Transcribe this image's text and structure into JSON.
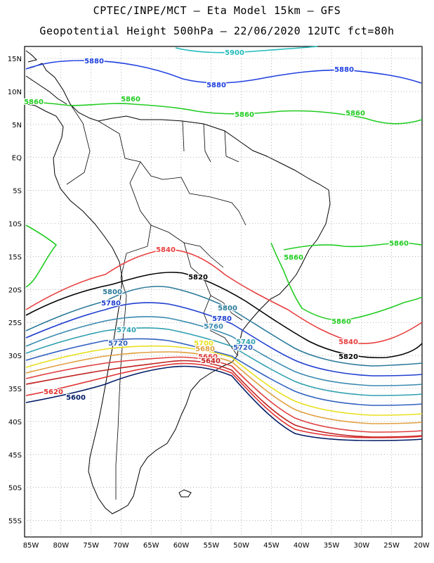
{
  "title_line1": "CPTEC/INPE/MCT –  Eta Model 15km – GFS",
  "title_line2": "Geopotential Height 500hPa – 22/06/2020 12UTC fct=80h",
  "lat_ticks": [
    "15N",
    "10N",
    "5N",
    "EQ",
    "5S",
    "10S",
    "15S",
    "20S",
    "25S",
    "30S",
    "35S",
    "40S",
    "45S",
    "50S",
    "55S"
  ],
  "lon_ticks": [
    "85W",
    "80W",
    "75W",
    "70W",
    "65W",
    "60W",
    "55W",
    "50W",
    "45W",
    "40W",
    "35W",
    "30W",
    "25W",
    "20W"
  ],
  "contours": [
    {
      "value": 5900,
      "color": "#22bbbb",
      "label": "5900"
    },
    {
      "value": 5880,
      "color": "#2040e0",
      "label": "5880"
    },
    {
      "value": 5860,
      "color": "#22cc22",
      "label": "5860"
    },
    {
      "value": 5840,
      "color": "#e84040",
      "label": "5840"
    },
    {
      "value": 5820,
      "color": "#000000",
      "label": "5820"
    },
    {
      "value": 5800,
      "color": "#2b7a9a",
      "label": "5800"
    },
    {
      "value": 5780,
      "color": "#1f3fd0",
      "label": "5780"
    },
    {
      "value": 5760,
      "color": "#3a8ab0",
      "label": "5760"
    },
    {
      "value": 5740,
      "color": "#30a0b0",
      "label": "5740"
    },
    {
      "value": 5720,
      "color": "#3060c0",
      "label": "5720"
    },
    {
      "value": 5700,
      "color": "#e8e020",
      "label": "5700"
    },
    {
      "value": 5680,
      "color": "#e0a040",
      "label": "5680"
    },
    {
      "value": 5660,
      "color": "#e04040",
      "label": "5660"
    },
    {
      "value": 5640,
      "color": "#c02020",
      "label": "5640"
    },
    {
      "value": 5620,
      "color": "#e03030",
      "label": "5620"
    },
    {
      "value": 5600,
      "color": "#001a66",
      "label": "5600"
    }
  ]
}
